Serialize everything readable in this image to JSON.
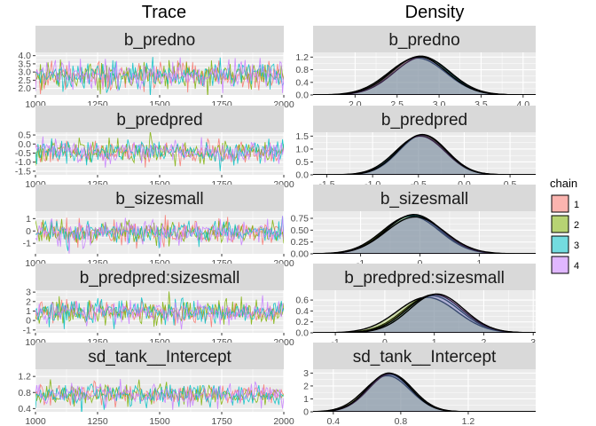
{
  "column_titles": {
    "trace": "Trace",
    "density": "Density"
  },
  "legend": {
    "title": "chain",
    "items": [
      {
        "label": "1",
        "color": "#F8766D"
      },
      {
        "label": "2",
        "color": "#7CAE00"
      },
      {
        "label": "3",
        "color": "#00BFC4"
      },
      {
        "label": "4",
        "color": "#C77CFF"
      }
    ]
  },
  "chart_data": [
    {
      "type": "line",
      "parameter": "b_predno",
      "title": "b_predno",
      "xlim": [
        1000,
        2000
      ],
      "x_ticks": [
        1000,
        1250,
        1500,
        1750,
        2000
      ],
      "ylim": [
        1.6,
        4.2
      ],
      "y_ticks": [
        2.0,
        2.5,
        3.0,
        3.5,
        4.0
      ],
      "y_tick_labels": [
        "2.0",
        "2.5",
        "3.0",
        "3.5",
        "4.0"
      ],
      "center": 2.8,
      "spread": 0.42
    },
    {
      "type": "area",
      "parameter": "b_predno",
      "title": "b_predno",
      "xlim": [
        1.5,
        4.15
      ],
      "x_ticks": [
        2.0,
        2.5,
        3.0,
        3.5,
        4.0
      ],
      "x_tick_labels": [
        "2.0",
        "2.5",
        "3.0",
        "3.5",
        "4.0"
      ],
      "ylim": [
        0,
        1.35
      ],
      "y_ticks": [
        0.0,
        0.4,
        0.8,
        1.2
      ],
      "y_tick_labels": [
        "0.0",
        "0.4",
        "0.8",
        "1.2"
      ],
      "peaks": [
        {
          "chain": "1",
          "mean": 2.78,
          "sd": 0.33,
          "height": 1.23
        },
        {
          "chain": "2",
          "mean": 2.74,
          "sd": 0.34,
          "height": 1.17
        },
        {
          "chain": "3",
          "mean": 2.8,
          "sd": 0.33,
          "height": 1.2
        },
        {
          "chain": "4",
          "mean": 2.76,
          "sd": 0.33,
          "height": 1.21
        }
      ]
    },
    {
      "type": "line",
      "parameter": "b_predpred",
      "title": "b_predpred",
      "xlim": [
        1000,
        2000
      ],
      "x_ticks": [
        1000,
        1250,
        1500,
        1750,
        2000
      ],
      "ylim": [
        -1.7,
        0.65
      ],
      "y_ticks": [
        -1.5,
        -1.0,
        -0.5,
        0.0,
        0.5
      ],
      "y_tick_labels": [
        "-1.5",
        "-1.0",
        "-0.5",
        "0.0",
        "0.5"
      ],
      "center": -0.45,
      "spread": 0.3
    },
    {
      "type": "area",
      "parameter": "b_predpred",
      "title": "b_predpred",
      "xlim": [
        -1.65,
        0.78
      ],
      "x_ticks": [
        -1.5,
        -1.0,
        -0.5,
        0.0,
        0.5
      ],
      "x_tick_labels": [
        "-1.5",
        "-1.0",
        "-0.5",
        "0.0",
        "0.5"
      ],
      "ylim": [
        0,
        1.65
      ],
      "y_ticks": [
        0.0,
        0.5,
        1.0,
        1.5
      ],
      "y_tick_labels": [
        "0.0",
        "0.5",
        "1.0",
        "1.5"
      ],
      "peaks": [
        {
          "chain": "1",
          "mean": -0.47,
          "sd": 0.26,
          "height": 1.52
        },
        {
          "chain": "2",
          "mean": -0.45,
          "sd": 0.26,
          "height": 1.55
        },
        {
          "chain": "3",
          "mean": -0.48,
          "sd": 0.27,
          "height": 1.5
        },
        {
          "chain": "4",
          "mean": -0.46,
          "sd": 0.26,
          "height": 1.56
        }
      ]
    },
    {
      "type": "line",
      "parameter": "b_sizesmall",
      "title": "b_sizesmall",
      "xlim": [
        1000,
        2000
      ],
      "x_ticks": [
        1000,
        1250,
        1500,
        1750,
        2000
      ],
      "ylim": [
        -1.85,
        1.6
      ],
      "y_ticks": [
        -1,
        0,
        1
      ],
      "y_tick_labels": [
        "-1",
        "0",
        "1"
      ],
      "center": -0.1,
      "spread": 0.5
    },
    {
      "type": "area",
      "parameter": "b_sizesmall",
      "title": "b_sizesmall",
      "xlim": [
        -1.8,
        1.95
      ],
      "x_ticks": [
        -1,
        0,
        1
      ],
      "x_tick_labels": [
        "-1",
        "0",
        "1"
      ],
      "ylim": [
        0,
        0.9
      ],
      "y_ticks": [
        0.0,
        0.25,
        0.5,
        0.75
      ],
      "y_tick_labels": [
        "0.00",
        "0.25",
        "0.50",
        "0.75"
      ],
      "peaks": [
        {
          "chain": "1",
          "mean": -0.12,
          "sd": 0.47,
          "height": 0.82
        },
        {
          "chain": "2",
          "mean": -0.15,
          "sd": 0.48,
          "height": 0.8
        },
        {
          "chain": "3",
          "mean": -0.1,
          "sd": 0.47,
          "height": 0.83
        },
        {
          "chain": "4",
          "mean": -0.08,
          "sd": 0.49,
          "height": 0.78
        }
      ]
    },
    {
      "type": "line",
      "parameter": "b_predpred:sizesmall",
      "title": "b_predpred:sizesmall",
      "xlim": [
        1000,
        2000
      ],
      "x_ticks": [
        1000,
        1250,
        1500,
        1750,
        2000
      ],
      "ylim": [
        -1.3,
        3.2
      ],
      "y_ticks": [
        -1,
        0,
        1,
        2,
        3
      ],
      "y_tick_labels": [
        "-1",
        "0",
        "1",
        "2",
        "3"
      ],
      "center": 0.95,
      "spread": 0.6
    },
    {
      "type": "area",
      "parameter": "b_predpred:sizesmall",
      "title": "b_predpred:sizesmall",
      "xlim": [
        -1.45,
        3.05
      ],
      "x_ticks": [
        -1,
        0,
        1,
        2,
        3
      ],
      "x_tick_labels": [
        "-1",
        "0",
        "1",
        "2",
        "3"
      ],
      "ylim": [
        0,
        0.78
      ],
      "y_ticks": [
        0.0,
        0.2,
        0.4,
        0.6
      ],
      "y_tick_labels": [
        "0.0",
        "0.2",
        "0.4",
        "0.6"
      ],
      "peaks": [
        {
          "chain": "1",
          "mean": 0.95,
          "sd": 0.57,
          "height": 0.68
        },
        {
          "chain": "2",
          "mean": 0.85,
          "sd": 0.6,
          "height": 0.65
        },
        {
          "chain": "3",
          "mean": 1.0,
          "sd": 0.56,
          "height": 0.7
        },
        {
          "chain": "4",
          "mean": 1.05,
          "sd": 0.55,
          "height": 0.71
        }
      ]
    },
    {
      "type": "line",
      "parameter": "sd_tank__Intercept",
      "title": "sd_tank__Intercept",
      "xlim": [
        1000,
        2000
      ],
      "x_ticks": [
        1000,
        1250,
        1500,
        1750,
        2000
      ],
      "ylim": [
        0.32,
        1.38
      ],
      "y_ticks": [
        0.4,
        0.8,
        1.2
      ],
      "y_tick_labels": [
        "0.4",
        "0.8",
        "1.2"
      ],
      "center": 0.74,
      "spread": 0.13
    },
    {
      "type": "area",
      "parameter": "sd_tank__Intercept",
      "title": "sd_tank__Intercept",
      "xlim": [
        0.28,
        1.6
      ],
      "x_ticks": [
        0.4,
        0.8,
        1.2
      ],
      "x_tick_labels": [
        "0.4",
        "0.8",
        "1.2"
      ],
      "ylim": [
        0,
        3.3
      ],
      "y_ticks": [
        0,
        1,
        2,
        3
      ],
      "y_tick_labels": [
        "0",
        "1",
        "2",
        "3"
      ],
      "peaks": [
        {
          "chain": "1",
          "mean": 0.73,
          "sd": 0.13,
          "height": 2.9
        },
        {
          "chain": "2",
          "mean": 0.72,
          "sd": 0.135,
          "height": 2.8
        },
        {
          "chain": "3",
          "mean": 0.74,
          "sd": 0.13,
          "height": 2.95
        },
        {
          "chain": "4",
          "mean": 0.73,
          "sd": 0.128,
          "height": 3.0
        }
      ]
    }
  ]
}
